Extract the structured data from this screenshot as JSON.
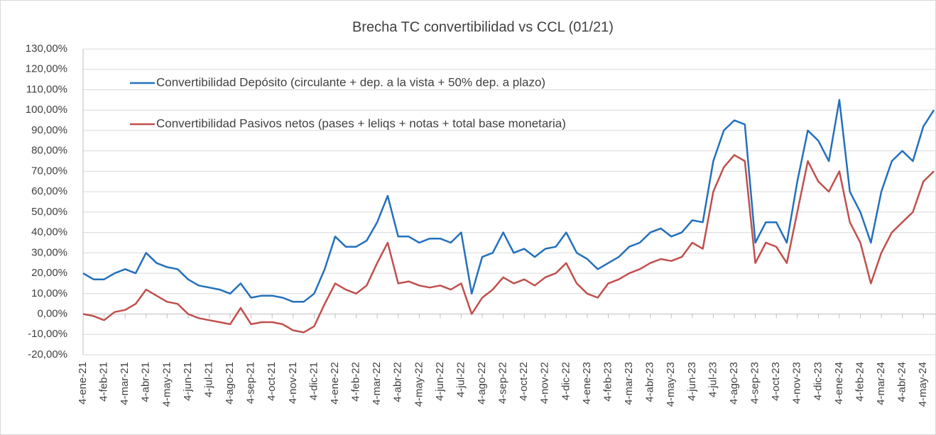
{
  "chart_data": {
    "type": "line",
    "title": "Brecha TC convertibilidad vs CCL (01/21)",
    "categories": [
      "4-ene-21",
      null,
      "4-feb-21",
      null,
      "4-mar-21",
      null,
      "4-abr-21",
      null,
      "4-may-21",
      null,
      "4-jun-21",
      null,
      "4-jul-21",
      null,
      "4-ago-21",
      null,
      "4-sep-21",
      null,
      "4-oct-21",
      null,
      "4-nov-21",
      null,
      "4-dic-21",
      null,
      "4-ene-22",
      null,
      "4-feb-22",
      null,
      "4-mar-22",
      null,
      "4-abr-22",
      null,
      "4-may-22",
      null,
      "4-jun-22",
      null,
      "4-jul-22",
      null,
      "4-ago-22",
      null,
      "4-sep-22",
      null,
      "4-oct-22",
      null,
      "4-nov-22",
      null,
      "4-dic-22",
      null,
      "4-ene-23",
      null,
      "4-feb-23",
      null,
      "4-mar-23",
      null,
      "4-abr-23",
      null,
      "4-may-23",
      null,
      "4-jun-23",
      null,
      "4-jul-23",
      null,
      "4-ago-23",
      null,
      "4-sep-23",
      null,
      "4-oct-23",
      null,
      "4-nov-23",
      null,
      "4-dic-23",
      null,
      "4-ene-24",
      null,
      "4-feb-24",
      null,
      "4-mar-24",
      null,
      "4-abr-24",
      null,
      "4-may-24",
      null
    ],
    "series": [
      {
        "name": "Convertibilidad Depósito (circulante + dep. a la vista + 50% dep. a plazo)",
        "color": "#2370bd",
        "values": [
          20,
          17,
          17,
          20,
          22,
          20,
          30,
          25,
          23,
          22,
          17,
          14,
          13,
          12,
          10,
          15,
          8,
          9,
          9,
          8,
          6,
          6,
          10,
          22,
          38,
          33,
          33,
          36,
          45,
          58,
          38,
          38,
          35,
          37,
          37,
          35,
          40,
          10,
          28,
          30,
          40,
          30,
          32,
          28,
          32,
          33,
          40,
          30,
          27,
          22,
          25,
          28,
          33,
          35,
          40,
          42,
          38,
          40,
          46,
          45,
          75,
          90,
          95,
          93,
          35,
          45,
          45,
          35,
          65,
          90,
          85,
          75,
          105,
          60,
          50,
          35,
          60,
          75,
          80,
          75,
          92,
          100
        ]
      },
      {
        "name": "Convertibilidad Pasivos netos (pases + leliqs + notas + total base monetaria)",
        "color": "#c0504d",
        "values": [
          0,
          -1,
          -3,
          1,
          2,
          5,
          12,
          9,
          6,
          5,
          0,
          -2,
          -3,
          -4,
          -5,
          3,
          -5,
          -4,
          -4,
          -5,
          -8,
          -9,
          -6,
          5,
          15,
          12,
          10,
          14,
          25,
          35,
          15,
          16,
          14,
          13,
          14,
          12,
          15,
          0,
          8,
          12,
          18,
          15,
          17,
          14,
          18,
          20,
          25,
          15,
          10,
          8,
          15,
          17,
          20,
          22,
          25,
          27,
          26,
          28,
          35,
          32,
          60,
          72,
          78,
          75,
          25,
          35,
          33,
          25,
          50,
          75,
          65,
          60,
          70,
          45,
          35,
          15,
          30,
          40,
          45,
          50,
          65,
          70
        ]
      }
    ],
    "ylim": [
      -20,
      130
    ],
    "yticks": [
      {
        "value": -20,
        "label": "-20,00%"
      },
      {
        "value": -10,
        "label": "-10,00%"
      },
      {
        "value": 0,
        "label": "0,00%"
      },
      {
        "value": 10,
        "label": "10,00%"
      },
      {
        "value": 20,
        "label": "20,00%"
      },
      {
        "value": 30,
        "label": "30,00%"
      },
      {
        "value": 40,
        "label": "40,00%"
      },
      {
        "value": 50,
        "label": "50,00%"
      },
      {
        "value": 60,
        "label": "60,00%"
      },
      {
        "value": 70,
        "label": "70,00%"
      },
      {
        "value": 80,
        "label": "80,00%"
      },
      {
        "value": 90,
        "label": "90,00%"
      },
      {
        "value": 100,
        "label": "100,00%"
      },
      {
        "value": 110,
        "label": "110,00%"
      },
      {
        "value": 120,
        "label": "120,00%"
      },
      {
        "value": 130,
        "label": "130,00%"
      }
    ],
    "grid": true
  }
}
